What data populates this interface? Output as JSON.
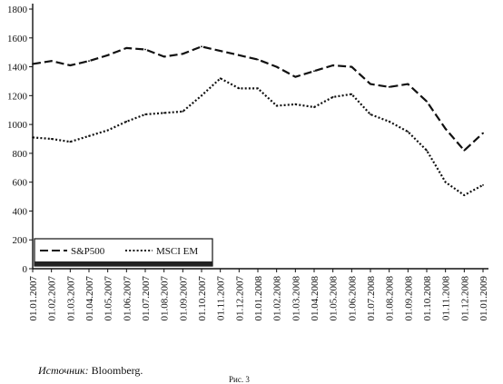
{
  "chart_data": {
    "type": "line",
    "x": [
      "01.01.2007",
      "01.02.2007",
      "01.03.2007",
      "01.04.2007",
      "01.05.2007",
      "01.06.2007",
      "01.07.2007",
      "01.08.2007",
      "01.09.2007",
      "01.10.2007",
      "01.11.2007",
      "01.12.2007",
      "01.01.2008",
      "01.02.2008",
      "01.03.2008",
      "01.04.2008",
      "01.05.2008",
      "01.06.2008",
      "01.07.2008",
      "01.08.2008",
      "01.09.2008",
      "01.10.2008",
      "01.11.2008",
      "01.12.2008",
      "01.01.2009"
    ],
    "series": [
      {
        "name": "S&P500",
        "dash": "long-dash",
        "color": "#111111",
        "values": [
          1420,
          1440,
          1410,
          1440,
          1480,
          1530,
          1520,
          1470,
          1490,
          1540,
          1510,
          1480,
          1450,
          1400,
          1330,
          1370,
          1410,
          1400,
          1280,
          1260,
          1280,
          1160,
          970,
          820,
          940
        ]
      },
      {
        "name": "MSCI EM",
        "dash": "dotted",
        "color": "#111111",
        "values": [
          910,
          900,
          880,
          920,
          960,
          1020,
          1070,
          1080,
          1090,
          1200,
          1320,
          1250,
          1250,
          1130,
          1140,
          1120,
          1190,
          1210,
          1070,
          1020,
          950,
          820,
          600,
          510,
          580
        ]
      }
    ],
    "ylim": [
      0,
      1800
    ],
    "yticks": [
      "0",
      "200",
      "400",
      "600",
      "800",
      "1000",
      "1200",
      "1400",
      "1600",
      "1800"
    ],
    "grid": false,
    "legend": "bottom-left"
  },
  "footer": {
    "source_label": "Источник:",
    "source_value": "Bloomberg.",
    "caption": "Рис. 3"
  }
}
